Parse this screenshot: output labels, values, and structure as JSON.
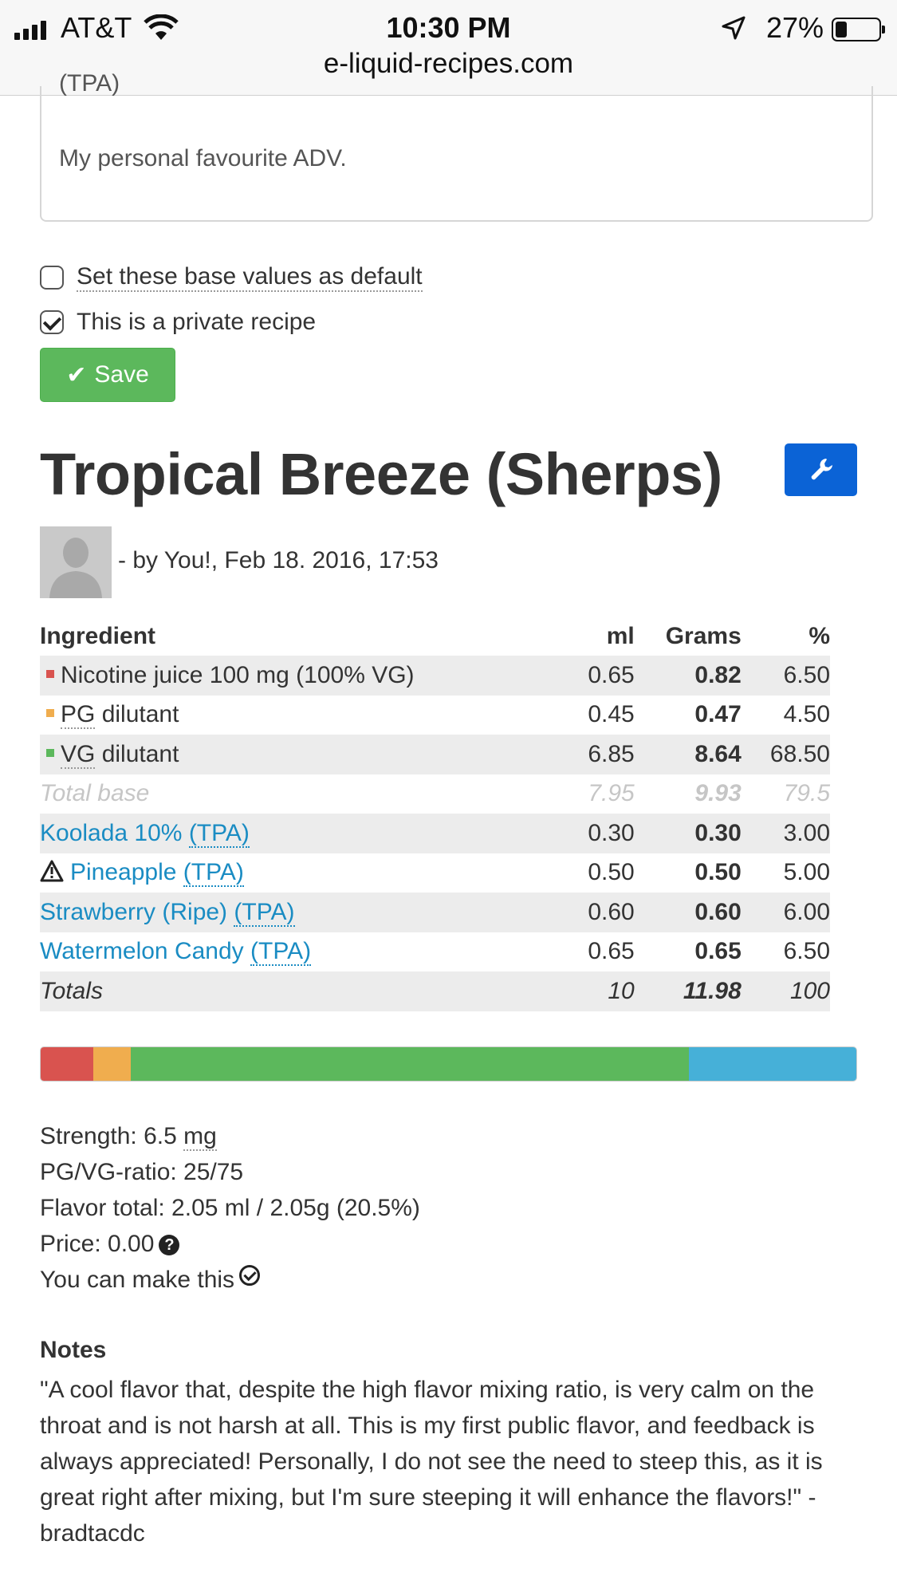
{
  "status_bar": {
    "carrier": "AT&T",
    "time": "10:30 PM",
    "battery": "27%",
    "battery_level": 0.27,
    "url": "e-liquid-recipes.com"
  },
  "description": {
    "cut_text": "(TPA)",
    "text": "My personal favourite ADV."
  },
  "options": {
    "default_label": "Set these base values as default",
    "default_checked": false,
    "private_label": "This is a private recipe",
    "private_checked": true
  },
  "save_label": "Save",
  "recipe": {
    "title": "Tropical Breeze (Sherps)",
    "byline": "- by You!, Feb 18. 2016, 17:53"
  },
  "table": {
    "headers": {
      "ingredient": "Ingredient",
      "ml": "ml",
      "grams": "Grams",
      "pct": "%"
    },
    "rows": [
      {
        "name": "Nicotine juice 100 mg (100% VG)",
        "ml": "0.65",
        "grams": "0.82",
        "pct": "6.50",
        "color": "#d9534f"
      },
      {
        "name_abbr": "PG",
        "name_rest": " dilutant",
        "ml": "0.45",
        "grams": "0.47",
        "pct": "4.50",
        "color": "#f0ad4e"
      },
      {
        "name_abbr": "VG",
        "name_rest": " dilutant",
        "ml": "6.85",
        "grams": "8.64",
        "pct": "68.50",
        "color": "#5cb85c"
      }
    ],
    "total_base": {
      "label": "Total base",
      "ml": "7.95",
      "grams": "9.93",
      "pct": "79.5"
    },
    "flavors": [
      {
        "name": "Koolada 10% ",
        "vendor": "(TPA)",
        "ml": "0.30",
        "grams": "0.30",
        "pct": "3.00",
        "warning": false
      },
      {
        "name": "Pineapple ",
        "vendor": "(TPA)",
        "ml": "0.50",
        "grams": "0.50",
        "pct": "5.00",
        "warning": true
      },
      {
        "name": "Strawberry (Ripe) ",
        "vendor": "(TPA)",
        "ml": "0.60",
        "grams": "0.60",
        "pct": "6.00",
        "warning": false
      },
      {
        "name": "Watermelon Candy ",
        "vendor": "(TPA)",
        "ml": "0.65",
        "grams": "0.65",
        "pct": "6.50",
        "warning": false
      }
    ],
    "totals": {
      "label": "Totals",
      "ml": "10",
      "grams": "11.98",
      "pct": "100"
    }
  },
  "bar": {
    "segments": [
      {
        "pct": 6.5,
        "color": "#d9534f"
      },
      {
        "pct": 4.5,
        "color": "#f0ad4e"
      },
      {
        "pct": 68.5,
        "color": "#5cb85c"
      },
      {
        "pct": 20.5,
        "color": "#46b0d8"
      }
    ]
  },
  "stats": {
    "strength_label": "Strength: 6.5 ",
    "strength_unit": "mg",
    "ratio": "PG/VG-ratio: 25/75",
    "flavor_total": "Flavor total: 2.05 ml / 2.05g (20.5%)",
    "price": "Price: 0.00",
    "make": "You can make this"
  },
  "notes": {
    "heading": "Notes",
    "text": "\"A cool flavor that, despite the high flavor mixing ratio, is very calm on the throat and is not harsh at all. This is my first public flavor, and feedback is always appreciated! Personally, I do not see the need to steep this, as it is great right after mixing, but I'm sure steeping it will enhance the flavors!\" - bradtacdc"
  }
}
